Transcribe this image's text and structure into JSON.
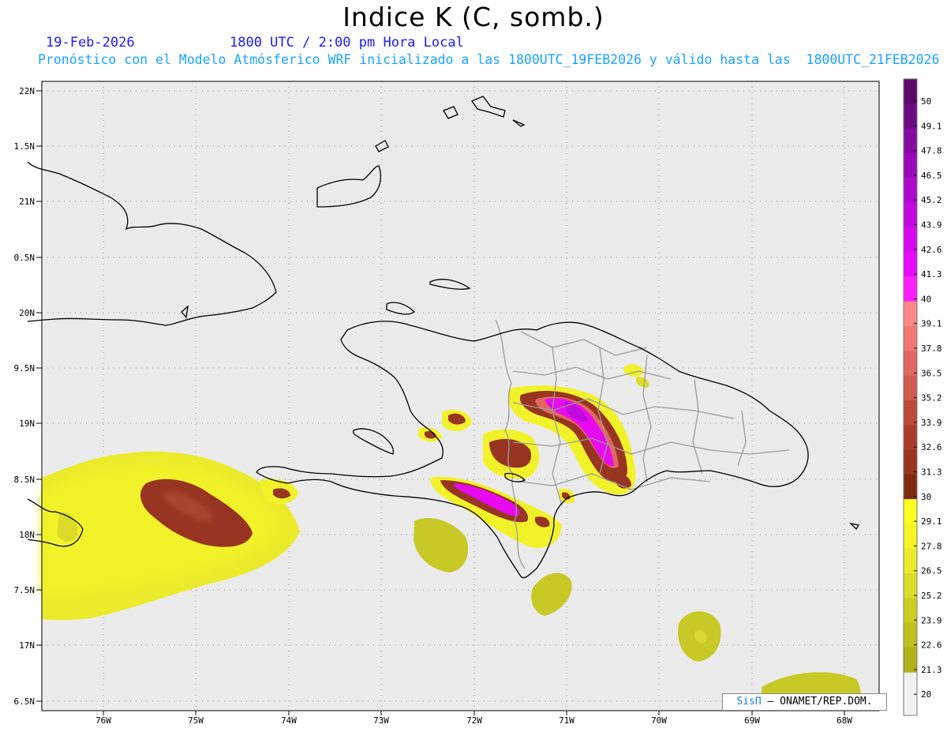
{
  "title": "Indice K (C, somb.)",
  "date": "19-Feb-2026",
  "time": "1800 UTC / 2:00 pm Hora Local",
  "subtitle": "Pronóstico con el Modelo Atmósferico WRF inicializado a las 1800UTC_19FEB2026 y válido hasta las  1800UTC_21FEB2026",
  "credit_brand": "SisΠ",
  "credit_rest": " ONAMET/REP.DOM.",
  "lat_ticks": [
    "22N",
    "1.5N",
    "21N",
    "0.5N",
    "20N",
    "9.5N",
    "19N",
    "8.5N",
    "18N",
    "7.5N",
    "17N",
    "6.5N"
  ],
  "lon_ticks": [
    "76W",
    "75W",
    "74W",
    "73W",
    "72W",
    "71W",
    "70W",
    "69W",
    "68W"
  ],
  "colorbar": {
    "labels": [
      "50",
      "49.1",
      "47.8",
      "46.5",
      "45.2",
      "43.9",
      "42.6",
      "41.3",
      "40",
      "39.1",
      "37.8",
      "36.5",
      "35.2",
      "33.9",
      "32.6",
      "31.3",
      "30",
      "29.1",
      "27.8",
      "26.5",
      "25.2",
      "23.9",
      "22.6",
      "21.3",
      "20"
    ],
    "colors": [
      "#5a0a66",
      "#6e0a82",
      "#850aa0",
      "#9a0ab8",
      "#ad0acd",
      "#c20ade",
      "#d60aee",
      "#e80af8",
      "#ff20ff",
      "#ff8888",
      "#f07870",
      "#e06860",
      "#d05a50",
      "#bb4a3e",
      "#a83d2e",
      "#983522",
      "#7f2a10",
      "#ffff22",
      "#f5f528",
      "#ebeb2c",
      "#dcdc28",
      "#cdcd24",
      "#bfbf20",
      "#b1b11a"
    ]
  },
  "colors": {
    "background": "#ebebeb",
    "coast": "#000000",
    "border": "#9a9a9a",
    "grid": "#888888",
    "low": "#c8c826",
    "mid": "#f2f22a",
    "high": "#8c3a1f",
    "peak": "#e80aef"
  }
}
